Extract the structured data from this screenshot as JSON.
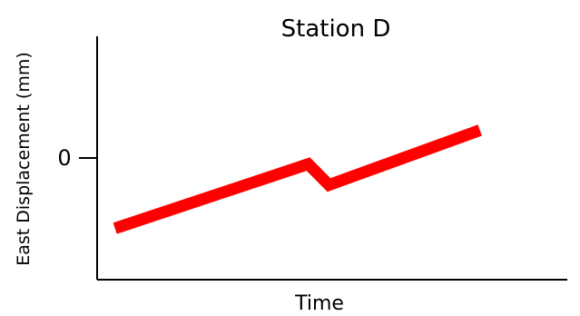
{
  "chart_data": {
    "type": "line",
    "title": "Station D",
    "xlabel": "Time",
    "ylabel": "East Displacement (mm)",
    "x_ticks": [],
    "y_ticks": [
      {
        "value": 0,
        "label": "0"
      }
    ],
    "xlim": [
      0,
      100
    ],
    "ylim": [
      -14,
      14
    ],
    "grid": false,
    "legend": "none",
    "series": [
      {
        "color": "#ff0000",
        "x": [
          3.8,
          44.9,
          49.3,
          81.4
        ],
        "y": [
          -8.1,
          -0.7,
          -3.1,
          3.2
        ]
      }
    ]
  }
}
